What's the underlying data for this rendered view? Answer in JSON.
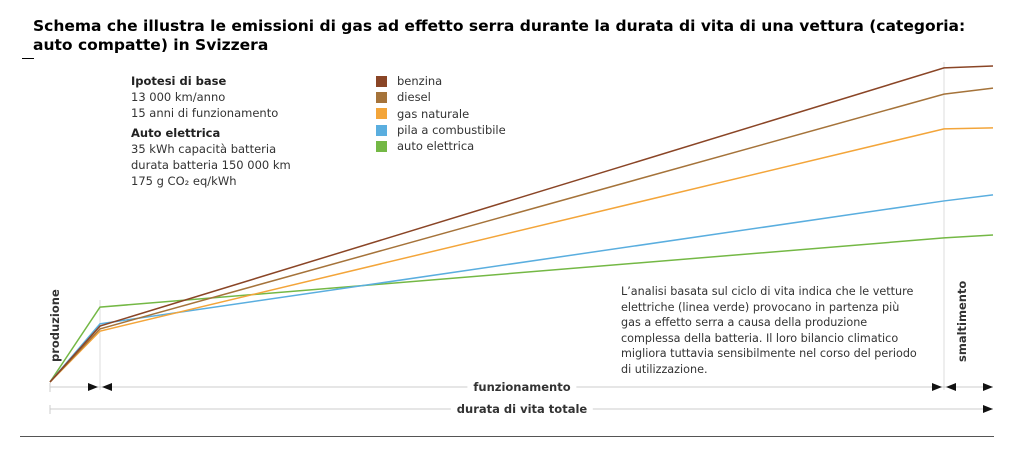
{
  "title": "Schema che illustra le emissioni di gas ad effetto serra durante la durata di vita di una vettura (categoria: auto compatte) in Svizzera",
  "info": {
    "base_heading": "Ipotesi di base",
    "base_lines": [
      "13 000 km/anno",
      "15 anni di funzionamento"
    ],
    "ev_heading": "Auto elettrica",
    "ev_lines": [
      "35 kWh capacità batteria",
      "durata batteria 150 000 km",
      "175 g CO₂ eq/kWh"
    ]
  },
  "note": "L’analisi basata sul ciclo di vita indica che le vetture elettriche (linea verde) provocano in partenza più gas a effetto serra a causa della produzione complessa della batteria. Il loro bilancio climatico migliora tuttavia sensibilmente nel corso del periodo di utilizzazione.",
  "chart_data": {
    "type": "line",
    "title": "",
    "xlabel": "",
    "ylabel": "",
    "phases": [
      "produzione",
      "funzionamento",
      "smaltimento"
    ],
    "total_label": "durata di vita totale",
    "x": [
      0,
      1,
      2,
      3
    ],
    "ylim": [
      0,
      100
    ],
    "grid": false,
    "legend_placement": "top-center",
    "series": [
      {
        "name": "benzina",
        "color": "#8a4526",
        "values": [
          0,
          17.7,
          99.4,
          100
        ]
      },
      {
        "name": "diesel",
        "color": "#a5733a",
        "values": [
          0,
          16.8,
          91.1,
          93
        ]
      },
      {
        "name": "gas naturale",
        "color": "#f3a53a",
        "values": [
          0,
          16.1,
          80.1,
          80.4
        ]
      },
      {
        "name": "pila a combustibile",
        "color": "#5aaedf",
        "values": [
          0,
          18.4,
          57.3,
          59.2
        ]
      },
      {
        "name": "auto elettrica",
        "color": "#74b845",
        "values": [
          0,
          23.7,
          45.6,
          46.5
        ]
      }
    ]
  }
}
